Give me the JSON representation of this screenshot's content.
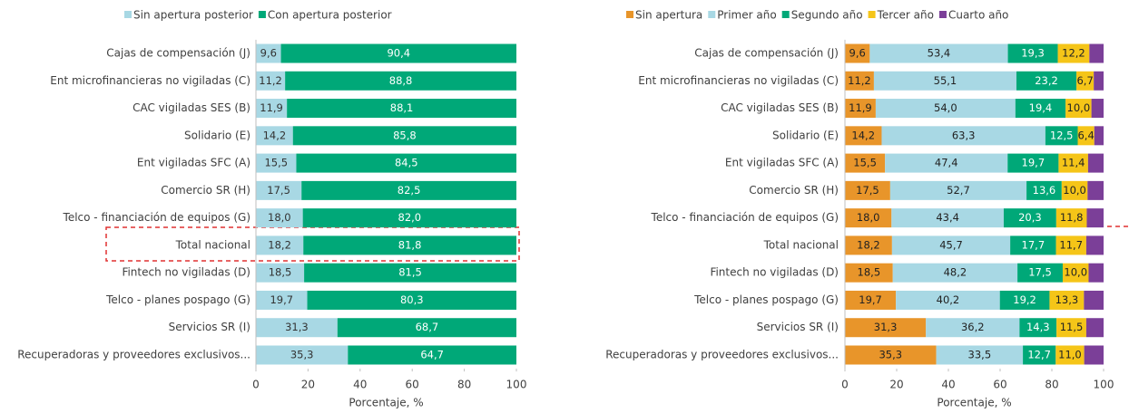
{
  "chart_data": [
    {
      "type": "stacked-barh",
      "categories": [
        "Cajas de compensación (J)",
        "Ent microfinancieras no vigiladas (C)",
        "CAC vigiladas SES (B)",
        "Solidario (E)",
        "Ent vigiladas SFC (A)",
        "Comercio SR (H)",
        "Telco - financiación de equipos (G)",
        "Total nacional",
        "Fintech no vigiladas (D)",
        "Telco - planes pospago (G)",
        "Servicios SR (I)",
        "Recuperadoras y proveedores exclusivos..."
      ],
      "series": [
        {
          "name": "Sin apertura posterior",
          "color": "#a8d8e4",
          "label_color": "#333333",
          "values": [
            9.6,
            11.2,
            11.9,
            14.2,
            15.5,
            17.5,
            18.0,
            18.2,
            18.5,
            19.7,
            31.3,
            35.3
          ],
          "value_labels": [
            "9,6",
            "11,2",
            "11,9",
            "14,2",
            "15,5",
            "17,5",
            "18,0",
            "18,2",
            "18,5",
            "19,7",
            "31,3",
            "35,3"
          ]
        },
        {
          "name": "Con apertura posterior",
          "color": "#00a878",
          "label_color": "#ffffff",
          "values": [
            90.4,
            88.8,
            88.1,
            85.8,
            84.5,
            82.5,
            82.0,
            81.8,
            81.5,
            80.3,
            68.7,
            64.7
          ],
          "value_labels": [
            "90,4",
            "88,8",
            "88,1",
            "85,8",
            "84,5",
            "82,5",
            "82,0",
            "81,8",
            "81,5",
            "80,3",
            "68,7",
            "64,7"
          ]
        }
      ],
      "xlim": [
        0,
        100
      ],
      "xticks": [
        0,
        20,
        40,
        60,
        80,
        100
      ],
      "xlabel": "Porcentaje, %"
    },
    {
      "type": "stacked-barh",
      "categories": [
        "Cajas de compensación (J)",
        "Ent microfinancieras no vigiladas (C)",
        "CAC vigiladas SES (B)",
        "Solidario (E)",
        "Ent vigiladas SFC (A)",
        "Comercio SR (H)",
        "Telco - financiación de equipos (G)",
        "Total nacional",
        "Fintech no vigiladas (D)",
        "Telco - planes pospago (G)",
        "Servicios SR (I)",
        "Recuperadoras y proveedores exclusivos..."
      ],
      "series": [
        {
          "name": "Sin apertura",
          "color": "#e8952a",
          "label_color": "#222222",
          "values": [
            9.6,
            11.2,
            11.9,
            14.2,
            15.5,
            17.5,
            18.0,
            18.2,
            18.5,
            19.7,
            31.3,
            35.3
          ],
          "value_labels": [
            "9,6",
            "11,2",
            "11,9",
            "14,2",
            "15,5",
            "17,5",
            "18,0",
            "18,2",
            "18,5",
            "19,7",
            "31,3",
            "35,3"
          ]
        },
        {
          "name": "Primer año",
          "color": "#a8d8e4",
          "label_color": "#222222",
          "values": [
            53.4,
            55.1,
            54.0,
            63.3,
            47.4,
            52.7,
            43.4,
            45.7,
            48.2,
            40.2,
            36.2,
            33.5
          ],
          "value_labels": [
            "53,4",
            "55,1",
            "54,0",
            "63,3",
            "47,4",
            "52,7",
            "43,4",
            "45,7",
            "48,2",
            "40,2",
            "36,2",
            "33,5"
          ]
        },
        {
          "name": "Segundo año",
          "color": "#00a878",
          "label_color": "#ffffff",
          "values": [
            19.3,
            23.2,
            19.4,
            12.5,
            19.7,
            13.6,
            20.3,
            17.7,
            17.5,
            19.2,
            14.3,
            12.7
          ],
          "value_labels": [
            "19,3",
            "23,2",
            "19,4",
            "12,5",
            "19,7",
            "13,6",
            "20,3",
            "17,7",
            "17,5",
            "19,2",
            "14,3",
            "12,7"
          ]
        },
        {
          "name": "Tercer año",
          "color": "#f5c518",
          "label_color": "#222222",
          "values": [
            12.2,
            6.7,
            10.0,
            6.4,
            11.4,
            10.0,
            11.8,
            11.7,
            10.0,
            13.3,
            11.5,
            11.0
          ],
          "value_labels": [
            "12,2",
            "6,7",
            "10,0",
            "6,4",
            "11,4",
            "10,0",
            "11,8",
            "11,7",
            "10,0",
            "13,3",
            "11,5",
            "11,0"
          ]
        },
        {
          "name": "Cuarto año",
          "color": "#7b3f98",
          "values": [
            5.5,
            3.8,
            4.7,
            3.6,
            6.0,
            6.2,
            6.5,
            6.7,
            5.8,
            7.6,
            6.7,
            7.5
          ]
        }
      ],
      "xlim": [
        0,
        100
      ],
      "xticks": [
        0,
        20,
        40,
        60,
        80,
        100
      ],
      "xlabel": "Porcentaje, %"
    }
  ]
}
